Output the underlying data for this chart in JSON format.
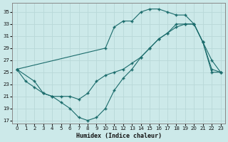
{
  "xlabel": "Humidex (Indice chaleur)",
  "bg_color": "#cce9e9",
  "grid_color": "#b8d8d8",
  "line_color": "#1a6b6b",
  "xlim": [
    -0.5,
    23.5
  ],
  "ylim": [
    16.5,
    36.5
  ],
  "xticks": [
    0,
    1,
    2,
    3,
    4,
    5,
    6,
    7,
    8,
    9,
    10,
    11,
    12,
    13,
    14,
    15,
    16,
    17,
    18,
    19,
    20,
    21,
    22,
    23
  ],
  "yticks": [
    17,
    19,
    21,
    23,
    25,
    27,
    29,
    31,
    33,
    35
  ],
  "line1_x": [
    0,
    1,
    2,
    3,
    4,
    5,
    6,
    7,
    8,
    9,
    10,
    11,
    12,
    13,
    14,
    15,
    16,
    17,
    18,
    19,
    20,
    21,
    22,
    23
  ],
  "line1_y": [
    25.5,
    23.5,
    22.5,
    21.5,
    21.0,
    20.0,
    19.0,
    17.5,
    17.0,
    17.5,
    19.0,
    22.0,
    24.0,
    25.5,
    27.5,
    29.0,
    30.5,
    31.5,
    32.5,
    33.0,
    33.0,
    30.0,
    25.0,
    25.0
  ],
  "line2_x": [
    0,
    10,
    11,
    12,
    13,
    14,
    15,
    16,
    17,
    18,
    19,
    20,
    21,
    22,
    23
  ],
  "line2_y": [
    25.5,
    29.0,
    32.5,
    33.5,
    33.5,
    35.0,
    35.5,
    35.5,
    35.0,
    34.5,
    34.5,
    33.0,
    30.0,
    25.5,
    25.0
  ],
  "line3_x": [
    0,
    2,
    3,
    4,
    5,
    6,
    7,
    8,
    9,
    10,
    11,
    12,
    13,
    14,
    15,
    16,
    17,
    18,
    19,
    20,
    21,
    22,
    23
  ],
  "line3_y": [
    25.5,
    23.5,
    21.5,
    21.0,
    21.0,
    21.0,
    20.5,
    21.5,
    23.5,
    24.5,
    25.0,
    25.5,
    26.5,
    27.5,
    29.0,
    30.5,
    31.5,
    33.0,
    33.0,
    33.0,
    30.0,
    27.0,
    25.0
  ]
}
